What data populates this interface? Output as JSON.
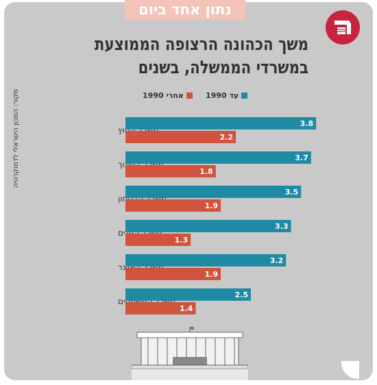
{
  "tag": "נתון אחד ביום",
  "title_line1": "משך הכהונה הרצופה הממוצעת",
  "title_line2": "במשרדי הממשלה, בשנים",
  "source": "מקור: המכון הישראלי לדמוקרטיה",
  "legend": {
    "s1": "עד 1990",
    "s2": "אחרי 1990"
  },
  "colors": {
    "before": "#1f8aa3",
    "after": "#d0533e",
    "brand": "#c7243f"
  },
  "chart_data": {
    "type": "bar",
    "orientation": "horizontal",
    "categories": [
      "משרד החוץ",
      "משרד החינוך",
      "משרד הבטחון",
      "משרד הפנים",
      "משרד האוצר",
      "משרד המשפטים"
    ],
    "series": [
      {
        "name": "עד 1990",
        "values": [
          3.8,
          3.7,
          3.5,
          3.3,
          3.2,
          2.5
        ]
      },
      {
        "name": "אחרי 1990",
        "values": [
          2.2,
          1.8,
          1.9,
          1.3,
          1.9,
          1.4
        ]
      }
    ],
    "value_labels": true,
    "legend_position": "top"
  }
}
